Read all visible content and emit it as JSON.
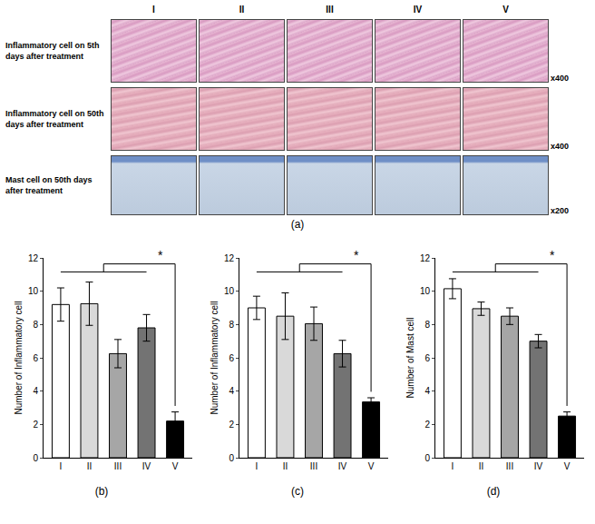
{
  "panel_a": {
    "label": "(a)",
    "columns": [
      "I",
      "II",
      "III",
      "IV",
      "V"
    ],
    "rows": [
      {
        "label": "Inflammatory cell on 5th days after treatment",
        "magnification": "x400"
      },
      {
        "label": "Inflammatory cell on 50th days after treatment",
        "magnification": "x400"
      },
      {
        "label": "Mast cell on 50th days after treatment",
        "magnification": "x200"
      }
    ]
  },
  "chart_data": [
    {
      "type": "bar",
      "label": "(b)",
      "y_title": "Number of Inflammatory cell",
      "categories": [
        "I",
        "II",
        "III",
        "IV",
        "V"
      ],
      "values": [
        9.2,
        9.25,
        6.25,
        7.8,
        2.2
      ],
      "errors": [
        1.0,
        1.3,
        0.85,
        0.8,
        0.55
      ],
      "colors": [
        "#ffffff",
        "#d9d9d9",
        "#a6a6a6",
        "#737373",
        "#000000"
      ],
      "ylim": [
        0,
        12
      ],
      "yticks": [
        0,
        2,
        4,
        6,
        8,
        10,
        12
      ],
      "grid": false,
      "annotations": [
        {
          "text": "*"
        }
      ]
    },
    {
      "type": "bar",
      "label": "(c)",
      "y_title": "Number of Inflammatory cell",
      "categories": [
        "I",
        "II",
        "III",
        "IV",
        "V"
      ],
      "values": [
        9.0,
        8.5,
        8.05,
        6.25,
        3.35
      ],
      "errors": [
        0.7,
        1.4,
        1.0,
        0.8,
        0.25
      ],
      "colors": [
        "#ffffff",
        "#d9d9d9",
        "#a6a6a6",
        "#737373",
        "#000000"
      ],
      "ylim": [
        0,
        12
      ],
      "yticks": [
        0,
        2,
        4,
        6,
        8,
        10,
        12
      ],
      "grid": false,
      "annotations": [
        {
          "text": "*"
        }
      ]
    },
    {
      "type": "bar",
      "label": "(d)",
      "y_title": "Number of Mast cell",
      "categories": [
        "I",
        "II",
        "III",
        "IV",
        "V"
      ],
      "values": [
        10.15,
        8.95,
        8.5,
        7.0,
        2.5
      ],
      "errors": [
        0.6,
        0.4,
        0.5,
        0.4,
        0.25
      ],
      "colors": [
        "#ffffff",
        "#d9d9d9",
        "#a6a6a6",
        "#737373",
        "#000000"
      ],
      "ylim": [
        0,
        12
      ],
      "yticks": [
        0,
        2,
        4,
        6,
        8,
        10,
        12
      ],
      "grid": false,
      "annotations": [
        {
          "text": "*"
        }
      ]
    }
  ]
}
